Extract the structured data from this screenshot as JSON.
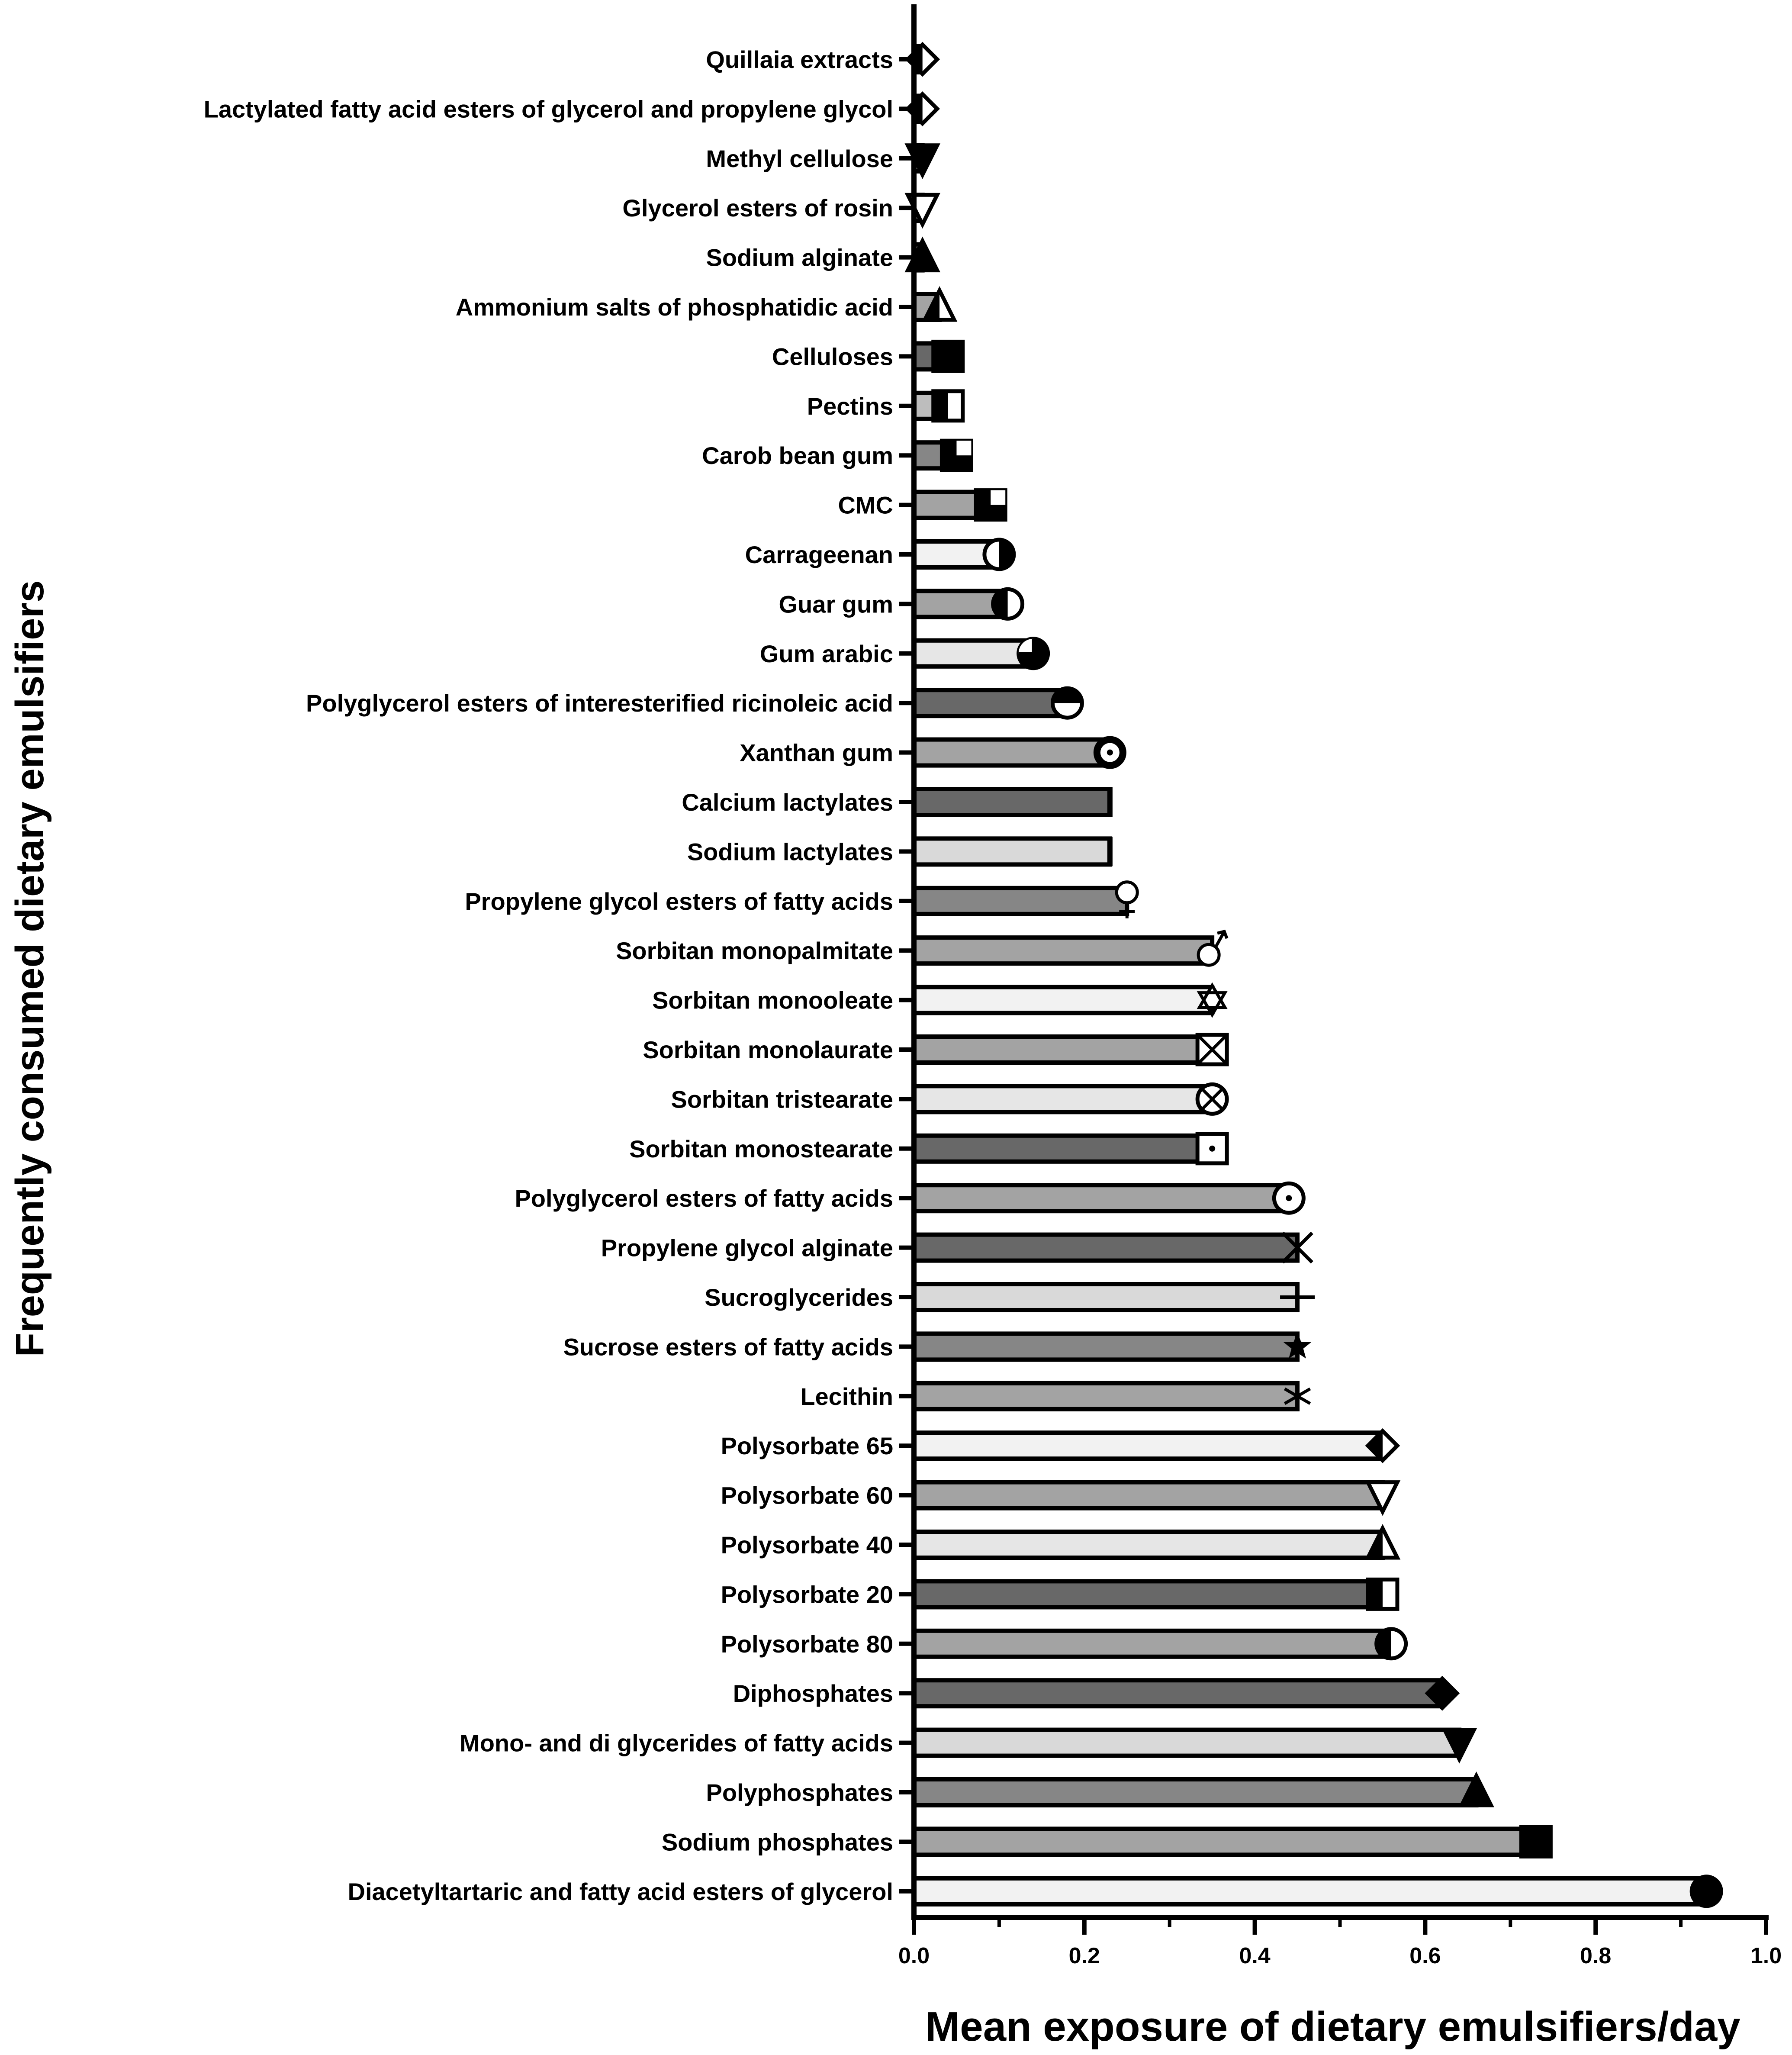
{
  "chart_data": {
    "type": "bar",
    "orientation": "horizontal",
    "xlabel": "Mean exposure of dietary emulsifiers/day",
    "ylabel": "Frequently consumed dietary emulsifiers",
    "xlim": [
      0,
      1.0
    ],
    "xticks": [
      "0.0",
      "0.2",
      "0.4",
      "0.6",
      "0.8",
      "1.0"
    ],
    "categories": [
      "Quillaia extracts",
      "Lactylated fatty acid esters of glycerol and propylene glycol",
      "Methyl cellulose",
      "Glycerol esters of rosin",
      "Sodium alginate",
      "Ammonium salts of phosphatidic acid",
      "Celluloses",
      "Pectins",
      "Carob bean gum",
      "CMC",
      "Carrageenan",
      "Guar gum",
      "Gum arabic",
      "Polyglycerol esters of interesterified ricinoleic acid",
      "Xanthan gum",
      "Calcium lactylates",
      "Sodium lactylates",
      "Propylene glycol esters of fatty acids",
      "Sorbitan monopalmitate",
      "Sorbitan monooleate",
      "Sorbitan monolaurate",
      "Sorbitan tristearate",
      "Sorbitan monostearate",
      "Polyglycerol esters of fatty acids",
      "Propylene glycol alginate",
      "Sucroglycerides",
      "Sucrose esters of fatty acids",
      "Lecithin",
      "Polysorbate 65",
      "Polysorbate 60",
      "Polysorbate 40",
      "Polysorbate 20",
      "Polysorbate 80",
      "Diphosphates",
      "Mono- and di glycerides of fatty acids",
      "Polyphosphates",
      "Sodium phosphates",
      "Diacetyltartaric and fatty acid esters of glycerol"
    ],
    "values": [
      0.01,
      0.01,
      0.01,
      0.01,
      0.01,
      0.03,
      0.04,
      0.04,
      0.05,
      0.09,
      0.1,
      0.11,
      0.14,
      0.18,
      0.23,
      0.23,
      0.23,
      0.25,
      0.35,
      0.35,
      0.35,
      0.35,
      0.35,
      0.44,
      0.45,
      0.45,
      0.45,
      0.45,
      0.55,
      0.55,
      0.55,
      0.55,
      0.56,
      0.62,
      0.64,
      0.66,
      0.73,
      0.93
    ],
    "bar_fills": [
      "#a3a3a3",
      "#a3a3a3",
      "#a3a3a3",
      "#a3a3a3",
      "#a3a3a3",
      "#a3a3a3",
      "#686868",
      "#bdbdbd",
      "#868686",
      "#a3a3a3",
      "#f2f2f2",
      "#a3a3a3",
      "#e6e6e6",
      "#686868",
      "#a3a3a3",
      "#686868",
      "#d9d9d9",
      "#868686",
      "#a3a3a3",
      "#f2f2f2",
      "#a3a3a3",
      "#e6e6e6",
      "#686868",
      "#a3a3a3",
      "#686868",
      "#d9d9d9",
      "#868686",
      "#a3a3a3",
      "#f2f2f2",
      "#a3a3a3",
      "#e6e6e6",
      "#686868",
      "#a3a3a3",
      "#686868",
      "#d9d9d9",
      "#868686",
      "#a3a3a3",
      "#f2f2f2"
    ],
    "markers": [
      "diamond-half",
      "diamond-half",
      "triangle-down-filled",
      "triangle-down-open",
      "triangle-up-filled",
      "triangle-up-half",
      "square-filled",
      "square-half",
      "square-quarter",
      "square-quarter",
      "circle-half-right",
      "circle-half-left",
      "circle-quarter",
      "circle-half-top",
      "circle-dot-bold",
      "line",
      "line",
      "female-symbol",
      "male-symbol",
      "hexagon-star",
      "square-x",
      "circle-x",
      "square-dot",
      "circle-dot",
      "x-cross",
      "plus",
      "star",
      "asterisk",
      "diamond-half",
      "triangle-down-open",
      "triangle-up-half",
      "square-half",
      "circle-half-left",
      "diamond-filled",
      "triangle-down-filled",
      "triangle-up-filled",
      "square-filled",
      "circle-filled"
    ]
  }
}
